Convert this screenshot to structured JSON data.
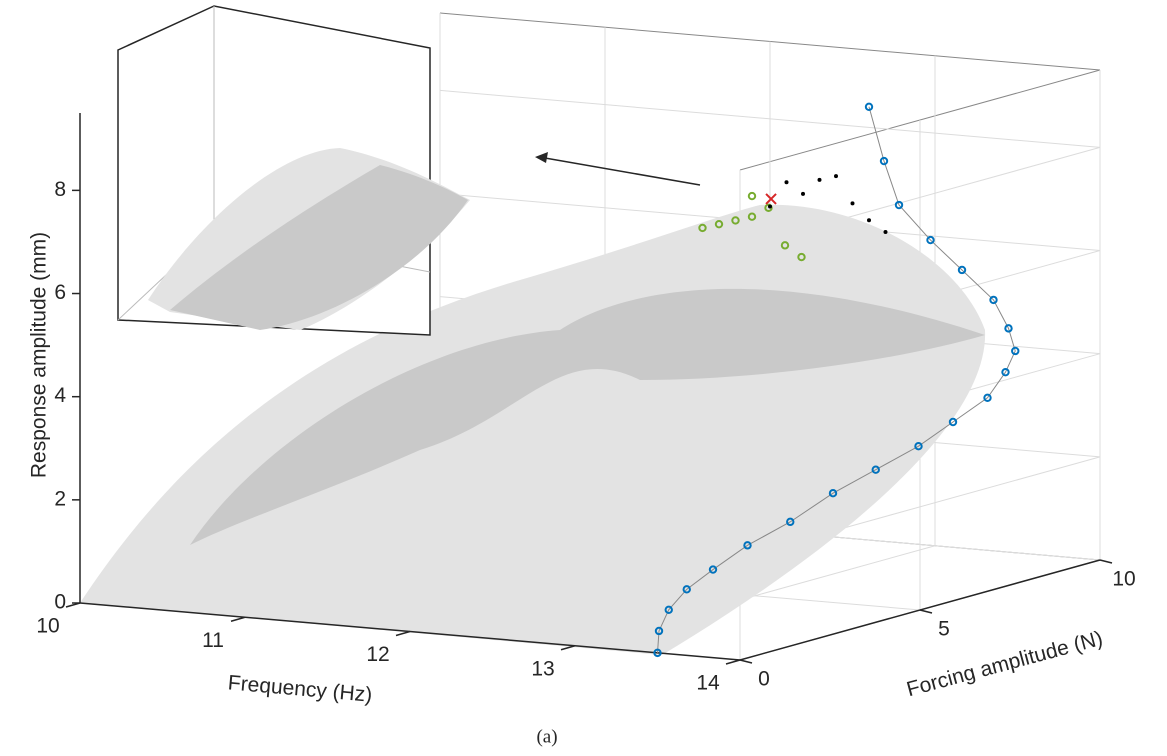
{
  "chart_data": {
    "type": "scatter3d",
    "xlabel": "Frequency (Hz)",
    "ylabel": "Forcing amplitude (N)",
    "zlabel": "Response amplitude (mm)",
    "caption": "(a)",
    "xlim": [
      10,
      14
    ],
    "ylim": [
      0,
      10
    ],
    "zlim": [
      0,
      9.5
    ],
    "xticks": [
      10,
      11,
      12,
      13,
      14
    ],
    "yticks": [
      0,
      5,
      10
    ],
    "zticks": [
      0,
      2,
      4,
      6,
      8
    ],
    "grid": true,
    "series": [
      {
        "color": "#0072bd",
        "marker": "circle",
        "x": [
          13.5,
          13.4,
          13.35,
          13.35,
          13.4,
          13.5,
          13.65,
          13.8,
          13.95,
          14.1,
          14.2,
          14.3,
          14.3,
          14.25,
          14.1,
          13.9,
          13.6,
          13.3,
          13.0,
          12.8,
          12.6
        ],
        "y": [
          0,
          0.5,
          1,
          1.5,
          2,
          2.5,
          3,
          3.5,
          4,
          4.5,
          5,
          5.5,
          6,
          6.5,
          7,
          7.5,
          8,
          8.5,
          9,
          9.5,
          10
        ],
        "z": [
          0,
          0.3,
          0.6,
          0.9,
          1.2,
          1.6,
          2.0,
          2.5,
          2.9,
          3.3,
          3.7,
          4.1,
          4.5,
          4.8,
          5.1,
          5.5,
          5.9,
          6.3,
          6.8,
          7.5,
          8.4
        ]
      },
      {
        "color": "#77ac30",
        "marker": "circle",
        "x": [
          11.7,
          11.8,
          11.9,
          12.0,
          12.1,
          12.0,
          12.2,
          12.3
        ],
        "y": [
          9.5,
          9.5,
          9.5,
          9.5,
          9.5,
          9.5,
          9.5,
          9.5
        ],
        "z": [
          5.9,
          6.0,
          6.1,
          6.2,
          6.4,
          6.6,
          5.7,
          5.5
        ]
      },
      {
        "color": "#000000",
        "marker": "dot",
        "x": [
          12.0,
          12.2,
          12.3,
          12.5,
          12.6,
          12.4,
          12.1,
          12.7
        ],
        "y": [
          10,
          10,
          10,
          10,
          10,
          10,
          10,
          10
        ],
        "z": [
          6.3,
          6.6,
          6.9,
          6.5,
          6.2,
          7.0,
          6.8,
          6.0
        ]
      },
      {
        "color": "#d62728",
        "marker": "cross",
        "x": [
          12.05
        ],
        "y": [
          9.8
        ],
        "z": [
          6.5
        ]
      }
    ]
  }
}
